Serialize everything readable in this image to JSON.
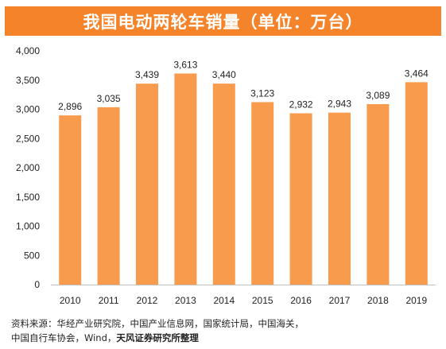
{
  "header": {
    "title": "我国电动两轮车销量（单位：万台）"
  },
  "colors": {
    "title_background": "#f5832a",
    "bar": "#f89b4c",
    "axis_line": "#bfbfbf"
  },
  "chart_data": {
    "type": "bar",
    "title": "我国电动两轮车销量（单位：万台）",
    "xlabel": "",
    "ylabel": "",
    "categories": [
      "2010",
      "2011",
      "2012",
      "2013",
      "2014",
      "2015",
      "2016",
      "2017",
      "2018",
      "2019"
    ],
    "values": [
      2896,
      3035,
      3439,
      3613,
      3440,
      3123,
      2932,
      2943,
      3089,
      3464
    ],
    "data_labels": [
      "2,896",
      "3,035",
      "3,439",
      "3,613",
      "3,440",
      "3,123",
      "2,932",
      "2,943",
      "3,089",
      "3,464"
    ],
    "ylim": [
      0,
      4000
    ],
    "yticks": [
      0,
      500,
      1000,
      1500,
      2000,
      2500,
      3000,
      3500,
      4000
    ],
    "ytick_labels": [
      "0",
      "500",
      "1,000",
      "1,500",
      "2,000",
      "2,500",
      "3,000",
      "3,500",
      "4,000"
    ],
    "grid": false,
    "legend": "none"
  },
  "source": {
    "line1": "资料来源：华经产业研究院，中国产业信息网，国家统计局，中国海关，",
    "line2_prefix": "中国自行车协会，Wind，",
    "line2_emph": "天风证券研究所整理"
  }
}
